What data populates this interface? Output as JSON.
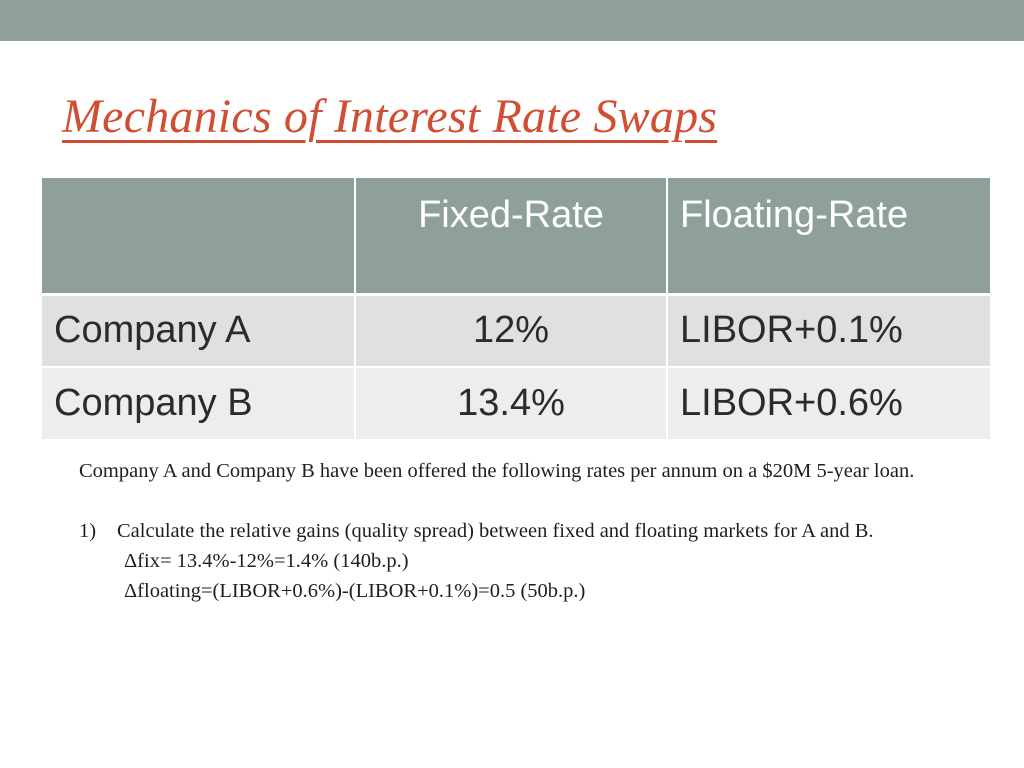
{
  "slide": {
    "title": "Mechanics of Interest Rate Swaps"
  },
  "table": {
    "headers": [
      "",
      "Fixed-Rate",
      "Floating-Rate"
    ],
    "rows": [
      {
        "company": "Company A",
        "fixed": "12%",
        "floating": "LIBOR+0.1%"
      },
      {
        "company": "Company B",
        "fixed": "13.4%",
        "floating": "LIBOR+0.6%"
      }
    ]
  },
  "body": {
    "intro": "Company A and Company B have been offered the following rates per annum on a $20M 5-year loan.",
    "question": {
      "number": "1)",
      "text": "Calculate the relative gains (quality spread) between fixed and floating markets for A and B."
    },
    "calc_fixed": "Δfix= 13.4%-12%=1.4% (140b.p.)",
    "calc_floating": "Δfloating=(LIBOR+0.6%)-(LIBOR+0.1%)=0.5 (50b.p.)"
  },
  "colors": {
    "band": "#8fa099",
    "title": "#d04f32",
    "row_a": "#dfe1e0",
    "row_b": "#eceeed"
  }
}
